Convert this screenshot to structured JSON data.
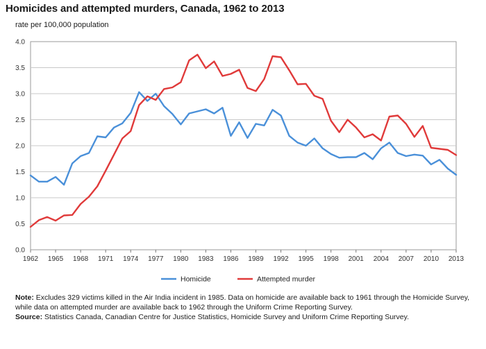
{
  "chart_data": {
    "type": "line",
    "title": "Homicides and attempted murders, Canada, 1962 to 2013",
    "ylabel": "rate per 100,000 population",
    "xlabel": "",
    "ylim": [
      0,
      4.0
    ],
    "xlim": [
      1962,
      2013
    ],
    "yticks": [
      "0.0",
      "0.5",
      "1.0",
      "1.5",
      "2.0",
      "2.5",
      "3.0",
      "3.5",
      "4.0"
    ],
    "xticks": [
      "1962",
      "1965",
      "1968",
      "1971",
      "1974",
      "1977",
      "1980",
      "1983",
      "1986",
      "1989",
      "1992",
      "1995",
      "1998",
      "2001",
      "2004",
      "2007",
      "2010",
      "2013"
    ],
    "x": [
      1962,
      1963,
      1964,
      1965,
      1966,
      1967,
      1968,
      1969,
      1970,
      1971,
      1972,
      1973,
      1974,
      1975,
      1976,
      1977,
      1978,
      1979,
      1980,
      1981,
      1982,
      1983,
      1984,
      1985,
      1986,
      1987,
      1988,
      1989,
      1990,
      1991,
      1992,
      1993,
      1994,
      1995,
      1996,
      1997,
      1998,
      1999,
      2000,
      2001,
      2002,
      2003,
      2004,
      2005,
      2006,
      2007,
      2008,
      2009,
      2010,
      2011,
      2012,
      2013
    ],
    "series": [
      {
        "name": "Homicide",
        "color": "#4a90d9",
        "values": [
          1.43,
          1.31,
          1.31,
          1.4,
          1.25,
          1.66,
          1.8,
          1.86,
          2.18,
          2.16,
          2.35,
          2.43,
          2.63,
          3.03,
          2.86,
          3.0,
          2.76,
          2.61,
          2.41,
          2.62,
          2.66,
          2.7,
          2.62,
          2.73,
          2.19,
          2.45,
          2.15,
          2.42,
          2.39,
          2.69,
          2.58,
          2.19,
          2.06,
          2.0,
          2.14,
          1.95,
          1.84,
          1.77,
          1.78,
          1.78,
          1.86,
          1.74,
          1.95,
          2.06,
          1.86,
          1.8,
          1.83,
          1.81,
          1.64,
          1.73,
          1.56,
          1.44
        ]
      },
      {
        "name": "Attempted murder",
        "color": "#e03a3a",
        "values": [
          0.44,
          0.57,
          0.63,
          0.56,
          0.66,
          0.67,
          0.88,
          1.02,
          1.22,
          1.52,
          1.83,
          2.14,
          2.28,
          2.78,
          2.95,
          2.88,
          3.09,
          3.12,
          3.22,
          3.64,
          3.75,
          3.49,
          3.62,
          3.34,
          3.38,
          3.46,
          3.11,
          3.05,
          3.28,
          3.72,
          3.7,
          3.45,
          3.18,
          3.19,
          2.96,
          2.9,
          2.48,
          2.26,
          2.5,
          2.35,
          2.16,
          2.22,
          2.1,
          2.56,
          2.58,
          2.42,
          2.17,
          2.38,
          1.96,
          1.94,
          1.92,
          1.82
        ]
      }
    ],
    "legend": [
      "Homicide",
      "Attempted murder"
    ],
    "legend_position": "bottom-center",
    "grid": true
  },
  "notes": {
    "note_label": "Note:",
    "note_text": " Excludes 329 victims killed in the Air India incident in 1985. Data on homicide are available back to 1961 through the Homicide Survey, while data on attempted murder are available back to 1962 through the Uniform Crime Reporting Survey.",
    "source_label": "Source:",
    "source_text": " Statistics Canada, Canadian Centre for Justice Statistics, Homicide Survey and Uniform Crime Reporting Survey."
  }
}
